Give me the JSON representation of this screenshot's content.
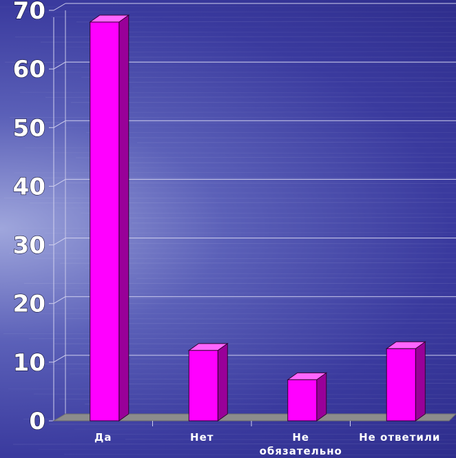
{
  "chart_data": {
    "type": "bar",
    "categories": [
      [
        "Да"
      ],
      [
        "Нет"
      ],
      [
        "Не",
        "обязательно"
      ],
      [
        "Не ответили"
      ]
    ],
    "values": [
      68,
      12,
      7,
      12.3
    ],
    "ylim": [
      0,
      70
    ],
    "yticks": [
      "0",
      "10",
      "20",
      "30",
      "40",
      "50",
      "60",
      "70"
    ],
    "grid": true,
    "bar_colors": {
      "front": "#ff00ff",
      "top": "#ff66ff",
      "side": "#990099"
    },
    "floor_color": "#8c8c8c"
  }
}
